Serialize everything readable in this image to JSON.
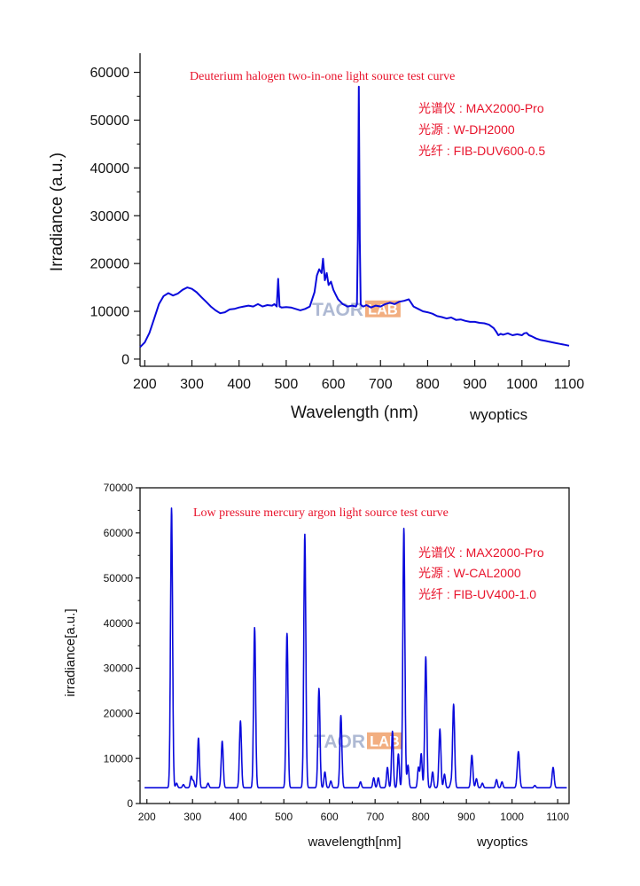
{
  "chart_data": [
    {
      "type": "line",
      "title": "Deuterium halogen two-in-one light source test curve",
      "xlabel": "Wavelength (nm)",
      "ylabel": "Irradiance (a.u.)",
      "xlim": [
        190,
        1100
      ],
      "ylim": [
        -1500,
        64000
      ],
      "xticks": [
        200,
        300,
        400,
        500,
        600,
        700,
        800,
        900,
        1000,
        1100
      ],
      "yticks": [
        0,
        10000,
        20000,
        30000,
        40000,
        50000,
        60000
      ],
      "legend": [
        "光谱仪 : MAX2000-Pro",
        "光源 : W-DH2000",
        "光纤 : FIB-DUV600-0.5"
      ],
      "watermark": "TAORLAB",
      "credit": "wyoptics",
      "color": "#0a0adc",
      "series": [
        {
          "name": "irradiance",
          "x": [
            190,
            200,
            210,
            220,
            230,
            240,
            250,
            260,
            270,
            280,
            290,
            300,
            310,
            320,
            330,
            340,
            350,
            360,
            370,
            380,
            390,
            400,
            410,
            420,
            430,
            440,
            450,
            460,
            470,
            475,
            480,
            483,
            486,
            490,
            500,
            510,
            520,
            530,
            540,
            550,
            560,
            565,
            570,
            575,
            578,
            582,
            586,
            590,
            595,
            600,
            605,
            610,
            620,
            630,
            640,
            648,
            650,
            652,
            654,
            656,
            658,
            660,
            664,
            670,
            680,
            690,
            700,
            710,
            720,
            730,
            740,
            750,
            760,
            770,
            780,
            790,
            800,
            810,
            820,
            830,
            840,
            850,
            860,
            870,
            880,
            890,
            900,
            910,
            920,
            930,
            940,
            945,
            950,
            955,
            960,
            970,
            980,
            990,
            1000,
            1005,
            1010,
            1015,
            1020,
            1030,
            1040,
            1050,
            1060,
            1070,
            1080,
            1090,
            1100
          ],
          "y": [
            2500,
            3500,
            5500,
            8500,
            11500,
            13200,
            13800,
            13300,
            13700,
            14500,
            15000,
            14700,
            14000,
            13000,
            12000,
            11000,
            10200,
            9600,
            9800,
            10400,
            10500,
            10800,
            11000,
            11200,
            11000,
            11500,
            11000,
            11300,
            11200,
            11500,
            11000,
            16800,
            11000,
            10800,
            10900,
            10800,
            10500,
            10200,
            10500,
            11000,
            14000,
            17500,
            18800,
            18000,
            21000,
            16500,
            18000,
            15500,
            16200,
            14500,
            13500,
            12500,
            11500,
            11000,
            11200,
            11000,
            11500,
            25000,
            57000,
            25000,
            11500,
            11200,
            11000,
            11300,
            10800,
            11200,
            11000,
            11500,
            11800,
            11500,
            12000,
            12200,
            12500,
            11000,
            10500,
            10000,
            9800,
            9500,
            9000,
            8800,
            8500,
            8700,
            8200,
            8300,
            8000,
            7800,
            7800,
            7600,
            7500,
            7200,
            6500,
            5800,
            5000,
            5300,
            5100,
            5400,
            5000,
            5200,
            5000,
            5400,
            5500,
            5000,
            4800,
            4300,
            4000,
            3800,
            3600,
            3400,
            3200,
            3000,
            2800
          ]
        }
      ]
    },
    {
      "type": "line",
      "title": "Low pressure mercury argon light source test curve",
      "xlabel": "wavelength[nm]",
      "ylabel": "irradiance[a.u.]",
      "xlim": [
        185,
        1125
      ],
      "ylim": [
        0,
        70000
      ],
      "xticks": [
        200,
        300,
        400,
        500,
        600,
        700,
        800,
        900,
        1000,
        1100
      ],
      "yticks": [
        0,
        10000,
        20000,
        30000,
        40000,
        50000,
        60000,
        70000
      ],
      "legend": [
        "光谱仪 : MAX2000-Pro",
        "光源 : W-CAL2000",
        "光纤 : FIB-UV400-1.0"
      ],
      "watermark": "TAORLAB",
      "credit": "wyoptics",
      "color": "#0a0adc",
      "baseline": 3500,
      "peaks": [
        {
          "x": 254,
          "y": 65500,
          "w": 2.2
        },
        {
          "x": 265,
          "y": 4500,
          "w": 2
        },
        {
          "x": 280,
          "y": 4200,
          "w": 2
        },
        {
          "x": 297,
          "y": 6000,
          "w": 2
        },
        {
          "x": 302,
          "y": 5000,
          "w": 2
        },
        {
          "x": 313,
          "y": 14500,
          "w": 2
        },
        {
          "x": 334,
          "y": 4500,
          "w": 2
        },
        {
          "x": 365,
          "y": 13800,
          "w": 2.2
        },
        {
          "x": 405,
          "y": 18300,
          "w": 2.2
        },
        {
          "x": 436,
          "y": 39000,
          "w": 2.2
        },
        {
          "x": 507,
          "y": 37700,
          "w": 2.2
        },
        {
          "x": 546,
          "y": 59700,
          "w": 2.2
        },
        {
          "x": 577,
          "y": 25500,
          "w": 2.2
        },
        {
          "x": 590,
          "y": 7000,
          "w": 2
        },
        {
          "x": 603,
          "y": 5000,
          "w": 2
        },
        {
          "x": 625,
          "y": 19500,
          "w": 2.2
        },
        {
          "x": 668,
          "y": 4800,
          "w": 2
        },
        {
          "x": 697,
          "y": 5700,
          "w": 2
        },
        {
          "x": 707,
          "y": 5700,
          "w": 2
        },
        {
          "x": 727,
          "y": 8000,
          "w": 2
        },
        {
          "x": 738,
          "y": 16000,
          "w": 2
        },
        {
          "x": 751,
          "y": 11000,
          "w": 2
        },
        {
          "x": 763,
          "y": 61000,
          "w": 2.2
        },
        {
          "x": 772,
          "y": 8500,
          "w": 2
        },
        {
          "x": 795,
          "y": 8000,
          "w": 2
        },
        {
          "x": 801,
          "y": 11000,
          "w": 2
        },
        {
          "x": 811,
          "y": 32500,
          "w": 2.2
        },
        {
          "x": 826,
          "y": 7000,
          "w": 2
        },
        {
          "x": 842,
          "y": 16500,
          "w": 2.2
        },
        {
          "x": 852,
          "y": 6500,
          "w": 2
        },
        {
          "x": 866,
          "y": 4500,
          "w": 2
        },
        {
          "x": 872,
          "y": 22000,
          "w": 2.2
        },
        {
          "x": 912,
          "y": 10700,
          "w": 2.2
        },
        {
          "x": 922,
          "y": 5500,
          "w": 2
        },
        {
          "x": 935,
          "y": 4500,
          "w": 2
        },
        {
          "x": 966,
          "y": 5300,
          "w": 2
        },
        {
          "x": 978,
          "y": 4800,
          "w": 2
        },
        {
          "x": 1014,
          "y": 11500,
          "w": 2.5
        },
        {
          "x": 1050,
          "y": 4000,
          "w": 2
        },
        {
          "x": 1090,
          "y": 8000,
          "w": 2.2
        }
      ]
    }
  ]
}
